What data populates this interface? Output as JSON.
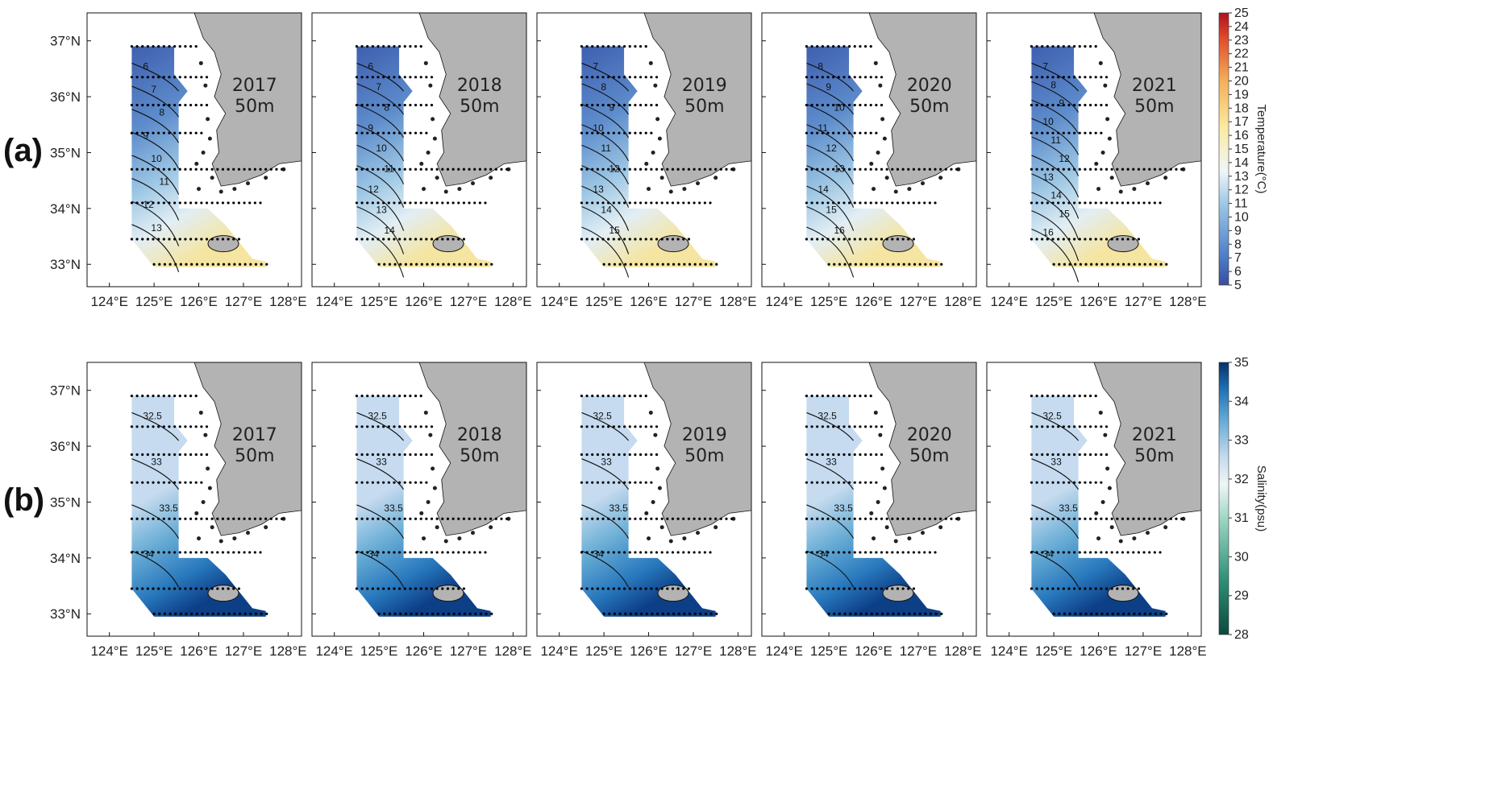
{
  "rows": [
    {
      "label": "(a)",
      "variable": "temperature",
      "panels": [
        {
          "year": "2017",
          "depth": "50m"
        },
        {
          "year": "2018",
          "depth": "50m"
        },
        {
          "year": "2019",
          "depth": "50m"
        },
        {
          "year": "2020",
          "depth": "50m"
        },
        {
          "year": "2021",
          "depth": "50m"
        }
      ],
      "contour_labels": [
        [
          "6",
          "7",
          "8",
          "9",
          "10",
          "11",
          "12",
          "13"
        ],
        [
          "6",
          "7",
          "8",
          "9",
          "10",
          "11",
          "12",
          "13",
          "14"
        ],
        [
          "7",
          "8",
          "9",
          "10",
          "11",
          "12",
          "13",
          "14",
          "15"
        ],
        [
          "8",
          "9",
          "10",
          "11",
          "12",
          "13",
          "14",
          "15",
          "16"
        ],
        [
          "7",
          "8",
          "9",
          "10",
          "11",
          "12",
          "13",
          "14",
          "15",
          "16"
        ]
      ],
      "colorbar": {
        "title": "Temperature(°C)",
        "min": 5,
        "max": 25,
        "ticks": [
          "25",
          "24",
          "23",
          "22",
          "21",
          "20",
          "19",
          "18",
          "17",
          "16",
          "15",
          "14",
          "13",
          "12",
          "11",
          "10",
          "9",
          "8",
          "7",
          "6",
          "5"
        ],
        "colormap": "blue-white-yellow-red",
        "colors": [
          "#3a4da0",
          "#4b7cc4",
          "#9ec8e6",
          "#f0f6f8",
          "#fbeaa0",
          "#f3b05a",
          "#e3502e",
          "#b01020"
        ]
      }
    },
    {
      "label": "(b)",
      "variable": "salinity",
      "panels": [
        {
          "year": "2017",
          "depth": "50m"
        },
        {
          "year": "2018",
          "depth": "50m"
        },
        {
          "year": "2019",
          "depth": "50m"
        },
        {
          "year": "2020",
          "depth": "50m"
        },
        {
          "year": "2021",
          "depth": "50m"
        }
      ],
      "contour_labels": [
        [
          "32.5",
          "33",
          "33.5",
          "34"
        ],
        [
          "32.5",
          "33",
          "33.5",
          "34"
        ],
        [
          "32.5",
          "33",
          "33.5",
          "34"
        ],
        [
          "32.5",
          "33",
          "33.5",
          "34"
        ],
        [
          "32.5",
          "33",
          "33.5",
          "34"
        ]
      ],
      "colorbar": {
        "title": "Salinity(psu)",
        "min": 28,
        "max": 35,
        "ticks": [
          "35",
          "34",
          "33",
          "32",
          "31",
          "30",
          "29",
          "28"
        ],
        "colormap": "green-white-blue",
        "colors": [
          "#0b4a3e",
          "#2f8f76",
          "#9ad4c2",
          "#eef6f6",
          "#c6dbef",
          "#6aaed6",
          "#2171b5",
          "#08306b"
        ]
      }
    }
  ],
  "x_axis_ticks": [
    "124°E",
    "125°E",
    "126°E",
    "127°E",
    "128°E"
  ],
  "y_axis_ticks": [
    "33°N",
    "34°N",
    "35°N",
    "36°N",
    "37°N"
  ],
  "map_extent": {
    "lon": [
      123.5,
      128.3
    ],
    "lat": [
      32.6,
      37.5
    ]
  },
  "land_color": "#b3b3b3",
  "station_color": "#000000"
}
